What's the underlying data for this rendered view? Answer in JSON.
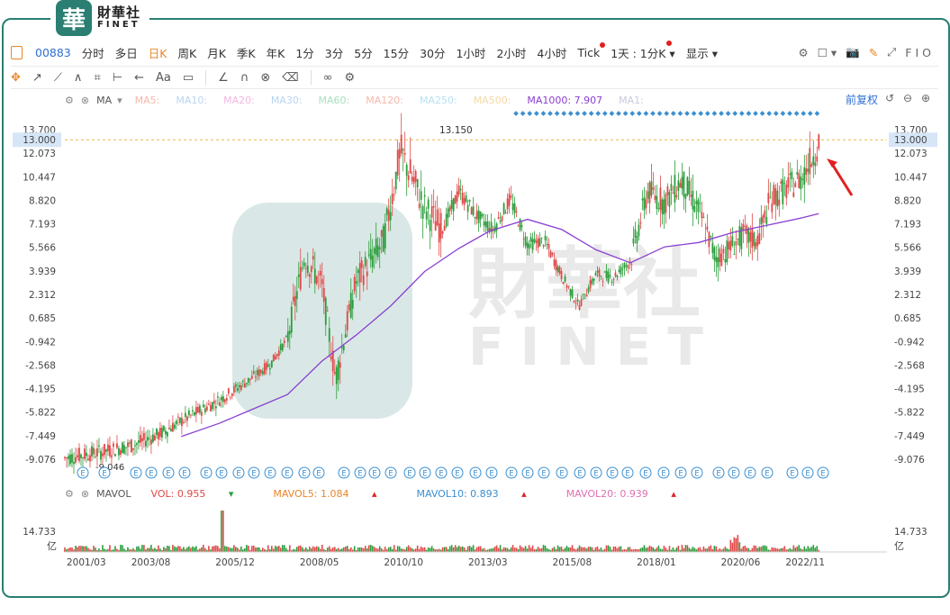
{
  "logo": {
    "mark": "華",
    "cn": "財華社",
    "en": "FINET"
  },
  "toolbar": {
    "code": "00883",
    "periods": [
      "分时",
      "多日",
      "日K",
      "周K",
      "月K",
      "季K",
      "年K",
      "1分",
      "3分",
      "5分",
      "15分",
      "30分",
      "1小时",
      "2小时",
      "4小时",
      "Tick"
    ],
    "active_period": "日K",
    "interval_select": "1天 : 1分K",
    "display_label": "显示",
    "right_labels": [
      "F",
      "I",
      "O"
    ]
  },
  "draw_tools": [
    "✥",
    "↗",
    "⟋",
    "∧",
    "⌗",
    "⊢",
    "←",
    "Aa",
    "▭",
    "∠",
    "∩",
    "⊗",
    "⌫",
    "∞",
    "⚙"
  ],
  "ma_legend": {
    "label": "MA",
    "items": [
      {
        "text": "MA5:",
        "color": "#f5b8a8"
      },
      {
        "text": "MA10:",
        "color": "#b8d4f0"
      },
      {
        "text": "MA20:",
        "color": "#f0b8e0"
      },
      {
        "text": "MA30:",
        "color": "#b8d4f0"
      },
      {
        "text": "MA60:",
        "color": "#a8e0c0"
      },
      {
        "text": "MA120:",
        "color": "#f5b8a8"
      },
      {
        "text": "MA250:",
        "color": "#b8e0f0"
      },
      {
        "text": "MA500:",
        "color": "#f5d8a8"
      },
      {
        "text": "MA1000: 7.907",
        "color": "#8a3fd1"
      },
      {
        "text": "MA1:",
        "color": "#c8c8e0"
      }
    ],
    "adjust": "前复权"
  },
  "vol_legend": {
    "label": "MAVOL",
    "items": [
      {
        "text": "VOL: 0.955",
        "color": "#e04848"
      },
      {
        "text": "MAVOL5: 1.084",
        "color": "#e8862a"
      },
      {
        "text": "MAVOL10: 0.893",
        "color": "#3a8fd1"
      },
      {
        "text": "MAVOL20: 0.939",
        "color": "#e070b0"
      }
    ]
  },
  "chart_data": {
    "type": "line",
    "price_axis": {
      "ticks": [
        "13.700",
        "13.000",
        "12.073",
        "10.447",
        "8.820",
        "7.193",
        "5.566",
        "3.939",
        "2.312",
        "0.685",
        "-0.942",
        "-2.568",
        "-4.195",
        "-5.822",
        "-7.449",
        "-9.076"
      ],
      "current": "13.000",
      "ylim": [
        -9.076,
        13.7
      ]
    },
    "annotations": {
      "high": "13.150",
      "low": "-9.046"
    },
    "x_labels": [
      "2001/03",
      "2003/08",
      "2005/12",
      "2008/05",
      "2010/10",
      "2013/03",
      "2015/08",
      "2018/01",
      "2020/06",
      "2022/11"
    ],
    "series": [
      {
        "name": "MA1000",
        "color": "#8a3fd1",
        "x": [
          2004.4,
          2005.5,
          2006.5,
          2007.5,
          2008.5,
          2009.5,
          2010.5,
          2011.5,
          2012.5,
          2013.4,
          2014.5,
          2015.5,
          2016.5,
          2017.5,
          2018.5,
          2019.5,
          2020.5,
          2021.5,
          2022.5,
          2023.0
        ],
        "values": [
          -7.5,
          -6.6,
          -5.6,
          -4.6,
          -2.3,
          -0.5,
          1.5,
          3.9,
          5.5,
          6.7,
          7.5,
          6.8,
          5.4,
          4.5,
          5.6,
          5.9,
          6.6,
          7.1,
          7.6,
          7.9
        ]
      },
      {
        "name": "Price",
        "color": "#2a9d3a",
        "x": [
          2001.0,
          2002.0,
          2003.0,
          2003.8,
          2004.5,
          2005.5,
          2006.5,
          2007.0,
          2007.5,
          2008.0,
          2008.5,
          2008.9,
          2009.5,
          2010.3,
          2010.8,
          2011.5,
          2012.0,
          2012.5,
          2013.0,
          2013.5,
          2014.0,
          2014.5,
          2015.0,
          2015.5,
          2016.0,
          2016.5,
          2017.0,
          2017.5,
          2018.0,
          2018.5,
          2019.0,
          2019.5,
          2020.0,
          2020.3,
          2020.8,
          2021.2,
          2021.6,
          2022.0,
          2022.5,
          2022.9,
          2023.0
        ],
        "values": [
          -9.0,
          -8.6,
          -8.1,
          -7.3,
          -6.3,
          -5.0,
          -3.4,
          -2.5,
          -0.7,
          5.0,
          3.0,
          -3.5,
          3.2,
          6.0,
          12.2,
          8.3,
          6.8,
          9.4,
          7.8,
          6.8,
          8.9,
          5.8,
          6.0,
          3.6,
          1.5,
          3.7,
          3.5,
          4.6,
          9.4,
          8.7,
          10.2,
          8.1,
          4.8,
          5.3,
          6.4,
          6.0,
          8.9,
          9.5,
          10.4,
          12.2,
          12.9
        ]
      }
    ],
    "volume": {
      "yticks": [
        "14.733"
      ],
      "unit": "亿"
    }
  }
}
